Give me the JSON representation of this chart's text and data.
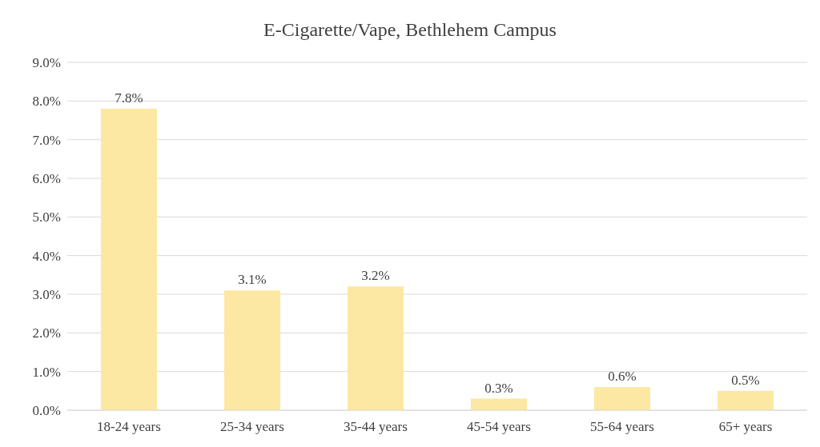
{
  "chart_data": {
    "type": "bar",
    "title": "E-Cigarette/Vape, Bethlehem Campus",
    "categories": [
      "18-24 years",
      "25-34 years",
      "35-44 years",
      "45-54 years",
      "55-64 years",
      "65+ years"
    ],
    "values": [
      7.8,
      3.1,
      3.2,
      0.3,
      0.6,
      0.5
    ],
    "value_labels": [
      "7.8%",
      "3.1%",
      "3.2%",
      "0.3%",
      "0.6%",
      "0.5%"
    ],
    "color": "#fce8a2",
    "ylim": [
      0,
      9
    ],
    "yticks": [
      {
        "value": 0,
        "label": "0.0%"
      },
      {
        "value": 1,
        "label": "1.0%"
      },
      {
        "value": 2,
        "label": "2.0%"
      },
      {
        "value": 3,
        "label": "3.0%"
      },
      {
        "value": 4,
        "label": "4.0%"
      },
      {
        "value": 5,
        "label": "5.0%"
      },
      {
        "value": 6,
        "label": "6.0%"
      },
      {
        "value": 7,
        "label": "7.0%"
      },
      {
        "value": 8,
        "label": "8.0%"
      },
      {
        "value": 9,
        "label": "9.0%"
      }
    ],
    "grid": "y"
  }
}
